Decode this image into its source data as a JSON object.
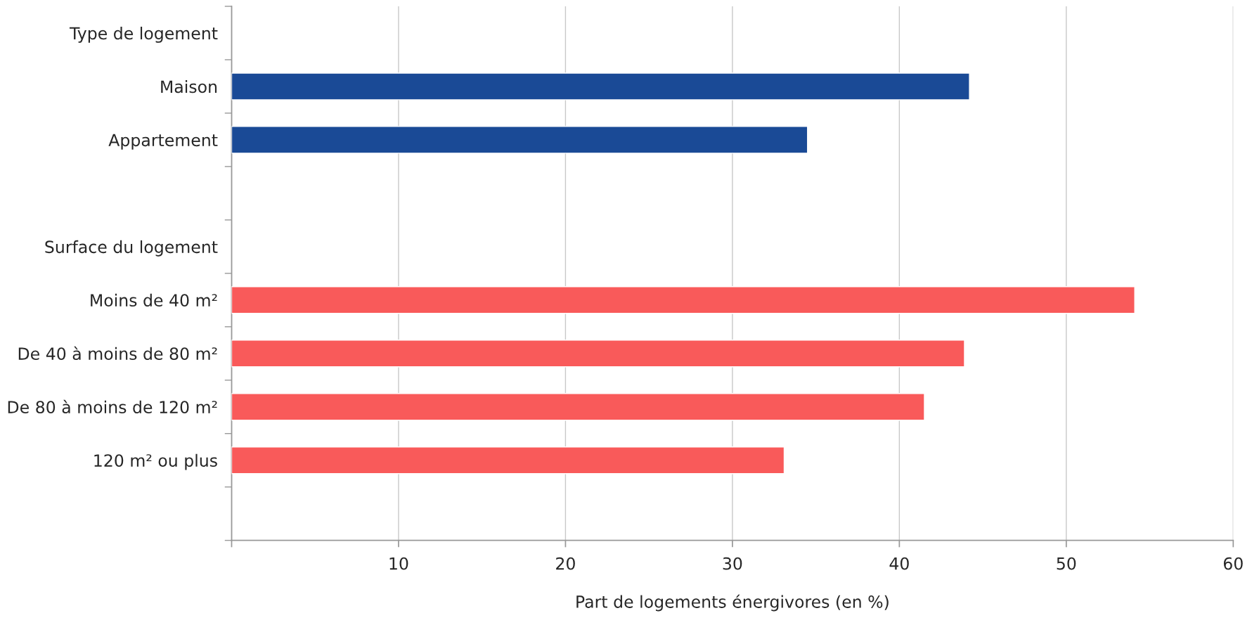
{
  "chart_data": {
    "type": "bar",
    "orientation": "horizontal",
    "xlabel": "Part de logements énergivores (en %)",
    "categories": [
      "Type de logement",
      "Maison",
      "Appartement",
      null,
      "Surface du logement",
      "Moins de 40 m²",
      "De 40 à moins de 80 m²",
      "De 80 à moins de 120 m²",
      "120 m² ou plus",
      null
    ],
    "series": [
      {
        "color": "#1a4a96",
        "values": [
          null,
          44.2,
          34.5,
          null,
          null,
          null,
          null,
          null,
          null,
          null
        ]
      },
      {
        "color": "#f95a5a",
        "values": [
          null,
          null,
          null,
          null,
          null,
          54.1,
          43.9,
          41.5,
          33.1,
          null
        ]
      }
    ],
    "xlim": [
      0,
      60
    ],
    "xticks": [
      {
        "value": 0,
        "label": null
      },
      10,
      20,
      30,
      40,
      50,
      60
    ],
    "grid": "x",
    "legend": false
  }
}
